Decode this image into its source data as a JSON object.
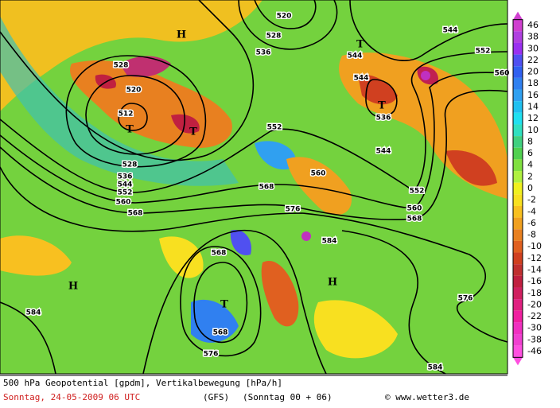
{
  "map": {
    "contour_labels": [
      "552",
      "552",
      "552",
      "552",
      "560",
      "568",
      "536",
      "528",
      "544",
      "520",
      "512",
      "528",
      "520",
      "528",
      "536",
      "544",
      "544",
      "536",
      "544",
      "544",
      "560",
      "568",
      "576",
      "584",
      "560",
      "568",
      "568",
      "576",
      "584",
      "584",
      "576",
      "568",
      "560"
    ],
    "pressure_centers": [
      "H",
      "T",
      "T",
      "T",
      "T",
      "H",
      "H",
      "T"
    ],
    "legend": {
      "levels": [
        46,
        38,
        30,
        22,
        20,
        18,
        16,
        14,
        12,
        10,
        8,
        6,
        4,
        2,
        0,
        -2,
        -4,
        -6,
        -8,
        -10,
        -12,
        -14,
        -16,
        -18,
        -20,
        -22,
        -30,
        -38,
        -46
      ],
      "colors": [
        "#d040d0",
        "#b040e0",
        "#9a30f0",
        "#5050f0",
        "#3060f0",
        "#3080f0",
        "#30a0f0",
        "#20c0f0",
        "#20e0f0",
        "#30e0c0",
        "#40d080",
        "#50d050",
        "#80e040",
        "#b0f040",
        "#f0f020",
        "#f8e020",
        "#f8c020",
        "#f0a020",
        "#e88020",
        "#e06020",
        "#d04020",
        "#c03030",
        "#c02040",
        "#d02060",
        "#e02080",
        "#f020a0",
        "#f030c0",
        "#f040d0",
        "#ff50e0"
      ]
    }
  },
  "footer": {
    "title": "500 hPa Geopotential [gpdm], Vertikalbewegung [hPa/h]",
    "date": "Sonntag, 24-05-2009  06 UTC",
    "model": "(GFS)",
    "run": "(Sonntag 00 + 06)",
    "source": "© www.wetter3.de"
  }
}
